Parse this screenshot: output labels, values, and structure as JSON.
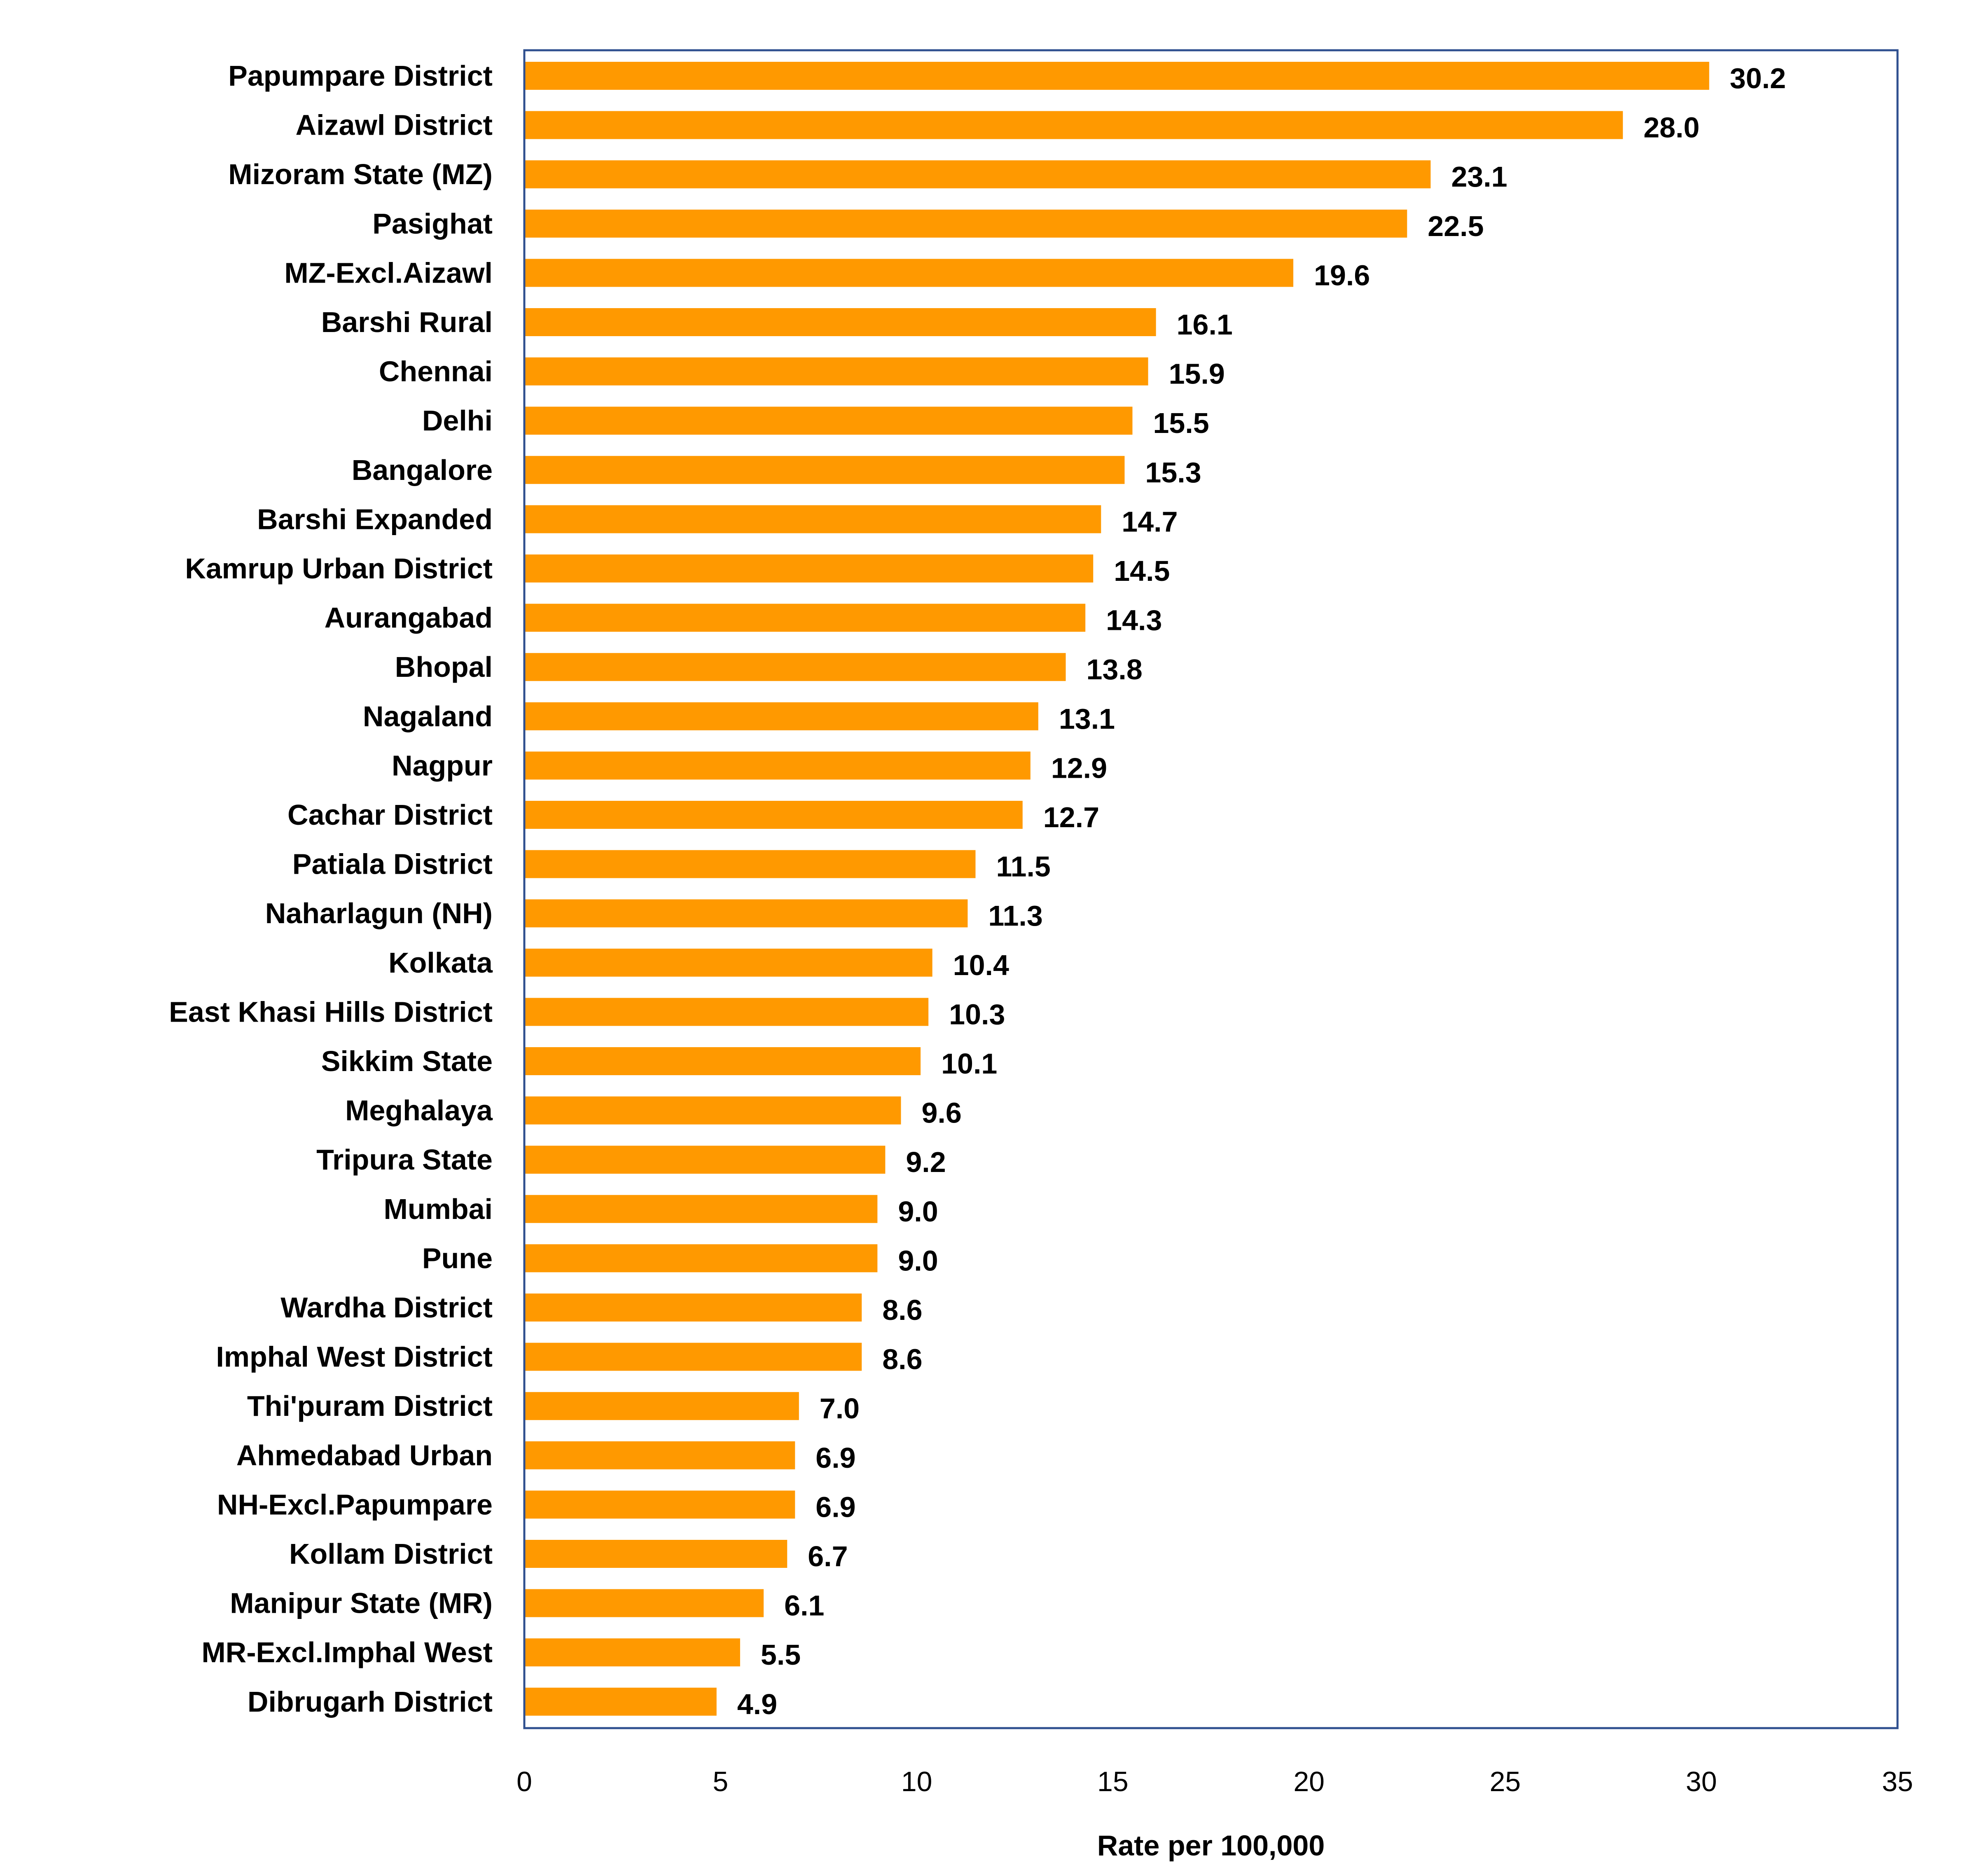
{
  "colors": {
    "bar": "#FF9900",
    "plot_border": "#2F4F8F"
  },
  "chart_data": {
    "type": "bar",
    "orientation": "horizontal",
    "title": "",
    "xlabel": "Rate per 100,000",
    "ylabel": "",
    "xlim": [
      0,
      35
    ],
    "x_ticks": [
      0,
      5,
      10,
      15,
      20,
      25,
      30,
      35
    ],
    "grid": false,
    "legend": "none",
    "categories": [
      "Papumpare District",
      "Aizawl District",
      "Mizoram State (MZ)",
      "Pasighat",
      "MZ-Excl.Aizawl",
      "Barshi Rural",
      "Chennai",
      "Delhi",
      "Bangalore",
      "Barshi Expanded",
      "Kamrup Urban District",
      "Aurangabad",
      "Bhopal",
      "Nagaland",
      "Nagpur",
      "Cachar District",
      "Patiala District",
      "Naharlagun (NH)",
      "Kolkata",
      "East Khasi Hills District",
      "Sikkim State",
      "Meghalaya",
      "Tripura State",
      "Mumbai",
      "Pune",
      "Wardha District",
      "Imphal West District",
      "Thi'puram District",
      "Ahmedabad Urban",
      "NH-Excl.Papumpare",
      "Kollam District",
      "Manipur State (MR)",
      "MR-Excl.Imphal West",
      "Dibrugarh District"
    ],
    "values": [
      30.2,
      28.0,
      23.1,
      22.5,
      19.6,
      16.1,
      15.9,
      15.5,
      15.3,
      14.7,
      14.5,
      14.3,
      13.8,
      13.1,
      12.9,
      12.7,
      11.5,
      11.3,
      10.4,
      10.3,
      10.1,
      9.6,
      9.2,
      9.0,
      9.0,
      8.6,
      8.6,
      7.0,
      6.9,
      6.9,
      6.7,
      6.1,
      5.5,
      4.9
    ],
    "value_labels": [
      "30.2",
      "28.0",
      "23.1",
      "22.5",
      "19.6",
      "16.1",
      "15.9",
      "15.5",
      "15.3",
      "14.7",
      "14.5",
      "14.3",
      "13.8",
      "13.1",
      "12.9",
      "12.7",
      "11.5",
      "11.3",
      "10.4",
      "10.3",
      "10.1",
      "9.6",
      "9.2",
      "9.0",
      "9.0",
      "8.6",
      "8.6",
      "7.0",
      "6.9",
      "6.9",
      "6.7",
      "6.1",
      "5.5",
      "4.9"
    ]
  }
}
